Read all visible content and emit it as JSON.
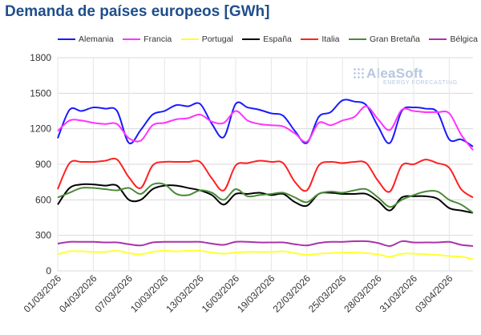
{
  "title": "Demanda de países europeos [GWh]",
  "logo": {
    "name": "AleaSoft",
    "tagline": "ENERGY FORECASTING"
  },
  "chart_data": {
    "type": "line",
    "title": "Demanda de países europeos [GWh]",
    "xlabel": "",
    "ylabel": "",
    "ylim": [
      0,
      1800
    ],
    "yticks": [
      0,
      300,
      600,
      900,
      1200,
      1500,
      1800
    ],
    "grid": true,
    "legend_position": "top",
    "x": [
      "01/03/2026",
      "02/03/2026",
      "03/03/2026",
      "04/03/2026",
      "05/03/2026",
      "06/03/2026",
      "07/03/2026",
      "08/03/2026",
      "09/03/2026",
      "10/03/2026",
      "11/03/2026",
      "12/03/2026",
      "13/03/2026",
      "14/03/2026",
      "15/03/2026",
      "16/03/2026",
      "17/03/2026",
      "18/03/2026",
      "19/03/2026",
      "20/03/2026",
      "21/03/2026",
      "22/03/2026",
      "23/03/2026",
      "24/03/2026",
      "25/03/2026",
      "26/03/2026",
      "27/03/2026",
      "28/03/2026",
      "29/03/2026",
      "30/03/2026",
      "31/03/2026",
      "01/04/2026",
      "02/04/2026",
      "03/04/2026",
      "04/04/2026",
      "05/04/2026"
    ],
    "xticks": [
      "01/03/2026",
      "04/03/2026",
      "07/03/2026",
      "10/03/2026",
      "13/03/2026",
      "16/03/2026",
      "19/03/2026",
      "22/03/2026",
      "25/03/2026",
      "28/03/2026",
      "31/03/2026",
      "03/04/2026"
    ],
    "series": [
      {
        "name": "Alemania",
        "color": "#1a1aff",
        "values": [
          1120,
          1360,
          1350,
          1380,
          1370,
          1350,
          1080,
          1190,
          1320,
          1350,
          1400,
          1390,
          1410,
          1240,
          1130,
          1410,
          1380,
          1360,
          1330,
          1310,
          1180,
          1080,
          1300,
          1340,
          1440,
          1430,
          1400,
          1220,
          1080,
          1350,
          1380,
          1370,
          1340,
          1110,
          1110,
          1050
        ]
      },
      {
        "name": "Francia",
        "color": "#ff33ff",
        "values": [
          1180,
          1270,
          1270,
          1250,
          1240,
          1240,
          1120,
          1100,
          1230,
          1250,
          1280,
          1290,
          1320,
          1260,
          1250,
          1350,
          1270,
          1240,
          1230,
          1220,
          1160,
          1090,
          1250,
          1230,
          1270,
          1300,
          1390,
          1280,
          1190,
          1360,
          1350,
          1340,
          1340,
          1330,
          1150,
          1020
        ]
      },
      {
        "name": "Portugal",
        "color": "#ffff33",
        "values": [
          140,
          165,
          165,
          160,
          160,
          170,
          150,
          140,
          160,
          170,
          165,
          170,
          170,
          155,
          145,
          155,
          160,
          160,
          160,
          165,
          150,
          135,
          145,
          150,
          155,
          155,
          150,
          140,
          120,
          145,
          145,
          140,
          135,
          125,
          120,
          100
        ]
      },
      {
        "name": "España",
        "color": "#000000",
        "values": [
          560,
          700,
          730,
          730,
          720,
          720,
          600,
          600,
          690,
          720,
          720,
          700,
          680,
          640,
          560,
          650,
          650,
          660,
          640,
          650,
          580,
          550,
          650,
          660,
          650,
          650,
          650,
          590,
          510,
          620,
          630,
          630,
          610,
          530,
          510,
          490
        ]
      },
      {
        "name": "Italia",
        "color": "#ff2020",
        "values": [
          690,
          910,
          920,
          920,
          930,
          940,
          790,
          700,
          890,
          920,
          920,
          920,
          920,
          780,
          680,
          890,
          910,
          930,
          920,
          910,
          750,
          680,
          890,
          920,
          910,
          920,
          910,
          760,
          670,
          890,
          900,
          940,
          910,
          870,
          690,
          620
        ]
      },
      {
        "name": "Gran Bretaña",
        "color": "#4a8a3a",
        "values": [
          620,
          660,
          700,
          700,
          690,
          680,
          700,
          650,
          730,
          730,
          650,
          640,
          680,
          660,
          600,
          690,
          630,
          640,
          650,
          660,
          620,
          580,
          650,
          670,
          660,
          680,
          690,
          620,
          540,
          600,
          640,
          670,
          670,
          600,
          560,
          490
        ]
      },
      {
        "name": "Bélgica",
        "color": "#aa33aa",
        "values": [
          230,
          245,
          245,
          245,
          240,
          240,
          225,
          215,
          240,
          245,
          245,
          245,
          245,
          230,
          220,
          245,
          245,
          240,
          240,
          240,
          225,
          215,
          235,
          245,
          245,
          250,
          250,
          235,
          210,
          250,
          240,
          240,
          240,
          245,
          220,
          210
        ]
      }
    ]
  }
}
